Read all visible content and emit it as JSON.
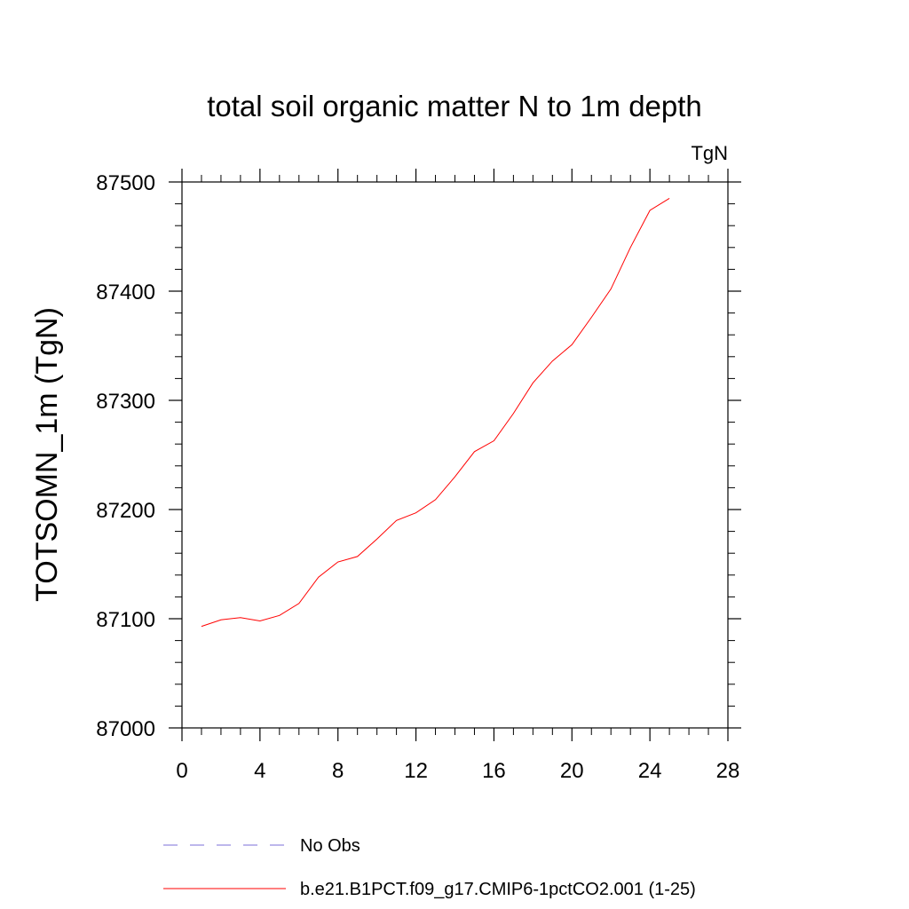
{
  "chart_data": {
    "type": "line",
    "title": "total soil organic matter N to 1m depth",
    "units_label": "TgN",
    "xlabel": "",
    "ylabel": "TOTSOMN_1m  (TgN)",
    "xlim": [
      0,
      28
    ],
    "ylim": [
      87000,
      87500
    ],
    "x_ticks": [
      0,
      4,
      8,
      12,
      16,
      20,
      24,
      28
    ],
    "x_tick_labels": [
      "0",
      "4",
      "8",
      "12",
      "16",
      "20",
      "24",
      "28"
    ],
    "y_ticks": [
      87000,
      87100,
      87200,
      87300,
      87400,
      87500
    ],
    "y_tick_labels": [
      "87000",
      "87100",
      "87200",
      "87300",
      "87400",
      "87500"
    ],
    "grid": false,
    "legend_placement": "bottom",
    "series": [
      {
        "name": "No Obs",
        "color": "#7b6fd8",
        "dash": "dashed",
        "x": [],
        "y": []
      },
      {
        "name": "b.e21.B1PCT.f09_g17.CMIP6-1pctCO2.001 (1-25)",
        "color": "#ff0000",
        "dash": "solid",
        "x": [
          1,
          2,
          3,
          4,
          5,
          6,
          7,
          8,
          9,
          10,
          11,
          12,
          13,
          14,
          15,
          16,
          17,
          18,
          19,
          20,
          21,
          22,
          23,
          24,
          25
        ],
        "y": [
          87093,
          87099,
          87101,
          87098,
          87103,
          87114,
          87138,
          87152,
          87157,
          87173,
          87190,
          87197,
          87209,
          87230,
          87253,
          87263,
          87288,
          87316,
          87336,
          87351,
          87376,
          87402,
          87440,
          87474,
          87485
        ]
      }
    ]
  }
}
